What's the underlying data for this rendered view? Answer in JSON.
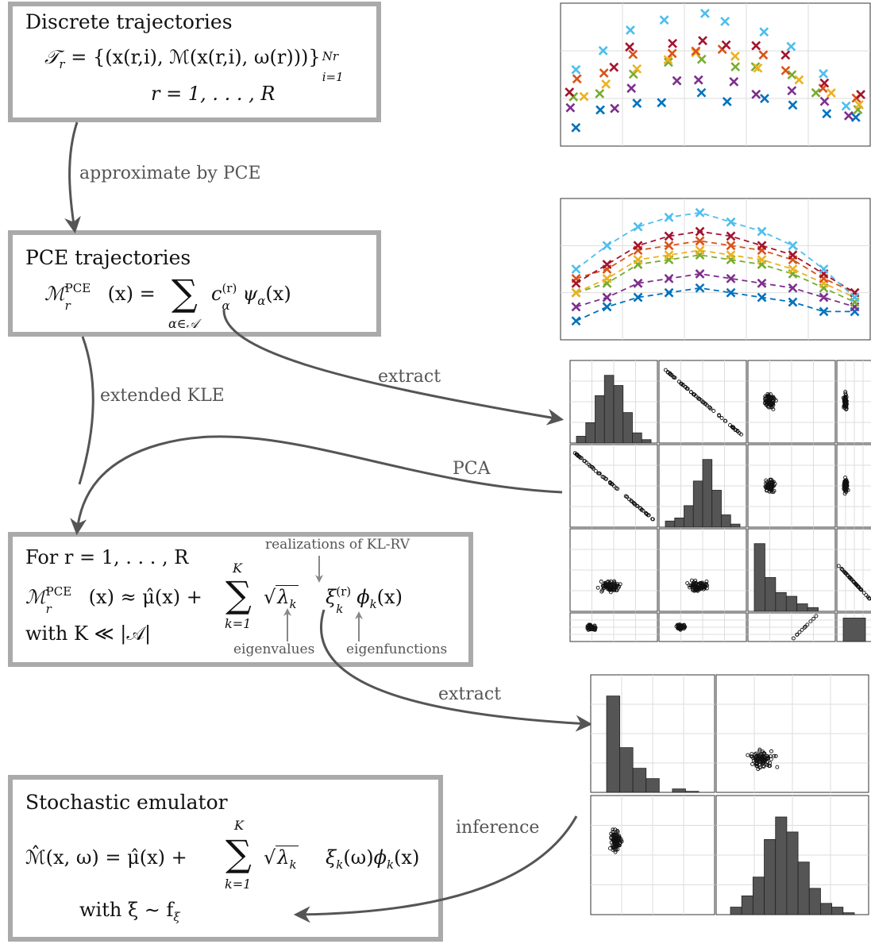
{
  "boxes": {
    "discrete": {
      "title": "Discrete trajectories",
      "eq_lhs": "𝒯",
      "eq_lhs_sub": "r",
      "eq_rhs": "= {(x(r,i), ℳ(x(r,i), ω(r)))}",
      "eq_sup": "Nr",
      "eq_sub": "i=1",
      "r_range": "r = 1, . . . , R"
    },
    "pce": {
      "title": "PCE trajectories",
      "lhs": "ℳ",
      "lhs_sup": "PCE",
      "lhs_sub": "r",
      "lhs_arg": "(x) =",
      "sum_under": "α∈𝒜",
      "term_c": "c",
      "term_c_sup": "(r)",
      "term_c_sub": "α",
      "term_psi": "ψ",
      "term_psi_sub": "α",
      "term_arg": "(x)"
    },
    "kle": {
      "line1": "For r = 1, . . . , R",
      "lhs": "ℳ",
      "lhs_sup": "PCE",
      "lhs_sub": "r",
      "rhs_start": "(x) ≈ μ̂(x) +",
      "sum_top": "K",
      "sum_bottom": "k=1",
      "sqrt_lambda": "λ",
      "lambda_sub": "k",
      "xi": "ξ",
      "xi_sup": "(r)",
      "xi_sub": "k",
      "phi": "ϕ",
      "phi_sub": "k",
      "phi_arg": "(x)",
      "line3": "with K ≪ |𝒜|",
      "ann_realizations": "realizations of KL-RV",
      "ann_eigenvalues": "eigenvalues",
      "ann_eigenfunctions": "eigenfunctions"
    },
    "emulator": {
      "title": "Stochastic emulator",
      "lhs": "ℳ̂(x, ω) = μ̂(x) +",
      "sum_top": "K",
      "sum_bottom": "k=1",
      "sqrt_lambda": "λ",
      "lambda_sub": "k",
      "xi": "ξ",
      "xi_sub": "k",
      "xi_arg": "(ω)",
      "phi": "ϕ",
      "phi_sub": "k",
      "phi_arg": "(x)",
      "line3": "with ξ ∼ f",
      "line3_sub": "ξ"
    }
  },
  "arrows": {
    "approximate": "approximate by PCE",
    "extended": "extended KLE",
    "extract1": "extract",
    "pca": "PCA",
    "extract2": "extract",
    "inference": "inference"
  },
  "colors": {
    "box_border": "#aaaaaa",
    "arrow": "#555555",
    "hist_fill": "#555555",
    "series": [
      "#0072BD",
      "#7E2F8E",
      "#77AC30",
      "#EDB120",
      "#D95319",
      "#A2142F",
      "#4DBEEE"
    ]
  },
  "chart_data": [
    {
      "type": "scatter",
      "name": "discrete-trajectories",
      "title": "",
      "xlabel": "",
      "ylabel": "",
      "grid": true,
      "x": [
        0,
        1,
        2,
        3,
        4,
        5,
        6,
        7,
        8,
        9
      ],
      "xlim": [
        0,
        10
      ],
      "ylim": [
        0,
        3
      ],
      "series": [
        {
          "color": "#0072BD",
          "values": [
            0.4,
            0.7,
            0.9,
            1.0,
            1.1,
            1.0,
            0.9,
            0.8,
            0.6,
            0.6
          ]
        },
        {
          "color": "#7E2F8E",
          "values": [
            0.7,
            0.9,
            1.2,
            1.3,
            1.4,
            1.3,
            1.2,
            1.1,
            0.9,
            0.7
          ]
        },
        {
          "color": "#77AC30",
          "values": [
            1.0,
            1.2,
            1.6,
            1.7,
            1.8,
            1.7,
            1.6,
            1.4,
            1.1,
            0.8
          ]
        },
        {
          "color": "#EDB120",
          "values": [
            1.0,
            1.3,
            1.7,
            1.8,
            1.9,
            1.8,
            1.7,
            1.5,
            1.2,
            0.9
          ]
        },
        {
          "color": "#D95319",
          "values": [
            1.3,
            1.5,
            1.9,
            2.0,
            2.1,
            2.0,
            1.9,
            1.7,
            1.3,
            1.0
          ]
        },
        {
          "color": "#A2142F",
          "values": [
            1.2,
            1.6,
            2.0,
            2.2,
            2.3,
            2.2,
            2.0,
            1.8,
            1.4,
            1.0
          ]
        },
        {
          "color": "#4DBEEE",
          "values": [
            1.5,
            2.0,
            2.4,
            2.6,
            2.7,
            2.5,
            2.3,
            2.0,
            1.5,
            0.9
          ]
        }
      ]
    },
    {
      "type": "line",
      "name": "pce-trajectories",
      "title": "",
      "xlabel": "",
      "ylabel": "",
      "grid": true,
      "x": [
        0,
        1,
        2,
        3,
        4,
        5,
        6,
        7,
        8,
        9
      ],
      "xlim": [
        0,
        10
      ],
      "ylim": [
        0,
        3
      ],
      "series": [
        {
          "color": "#0072BD",
          "values": [
            0.4,
            0.7,
            0.9,
            1.0,
            1.1,
            1.0,
            0.9,
            0.8,
            0.6,
            0.6
          ]
        },
        {
          "color": "#7E2F8E",
          "values": [
            0.7,
            0.9,
            1.2,
            1.3,
            1.4,
            1.3,
            1.2,
            1.1,
            0.9,
            0.7
          ]
        },
        {
          "color": "#77AC30",
          "values": [
            1.0,
            1.2,
            1.6,
            1.7,
            1.8,
            1.7,
            1.6,
            1.4,
            1.1,
            0.8
          ]
        },
        {
          "color": "#EDB120",
          "values": [
            1.0,
            1.3,
            1.7,
            1.8,
            1.9,
            1.8,
            1.7,
            1.5,
            1.2,
            0.9
          ]
        },
        {
          "color": "#D95319",
          "values": [
            1.3,
            1.5,
            1.9,
            2.0,
            2.1,
            2.0,
            1.9,
            1.7,
            1.3,
            1.0
          ]
        },
        {
          "color": "#A2142F",
          "values": [
            1.2,
            1.6,
            2.0,
            2.2,
            2.3,
            2.2,
            2.0,
            1.8,
            1.4,
            1.0
          ]
        },
        {
          "color": "#4DBEEE",
          "values": [
            1.5,
            2.0,
            2.4,
            2.6,
            2.7,
            2.5,
            2.3,
            2.0,
            1.5,
            0.9
          ]
        }
      ]
    },
    {
      "type": "scatter",
      "name": "pce-coefficient-matrix",
      "grid": true,
      "hist_values_1": [
        2,
        6,
        14,
        20,
        17,
        9,
        3,
        1
      ],
      "hist_values_2": [
        2,
        3,
        7,
        15,
        22,
        12,
        4,
        1
      ],
      "hist_values_3": [
        18,
        9,
        5,
        4,
        2,
        1,
        0
      ],
      "hist_values_4": [
        4
      ]
    },
    {
      "type": "scatter",
      "name": "kl-random-variable-matrix",
      "grid": true,
      "hist_values_1": [
        28,
        13,
        7,
        4,
        0,
        1,
        0.3
      ],
      "hist_values_2": [
        2,
        5,
        10,
        20,
        26,
        22,
        14,
        7,
        3,
        2,
        0.5
      ]
    }
  ]
}
